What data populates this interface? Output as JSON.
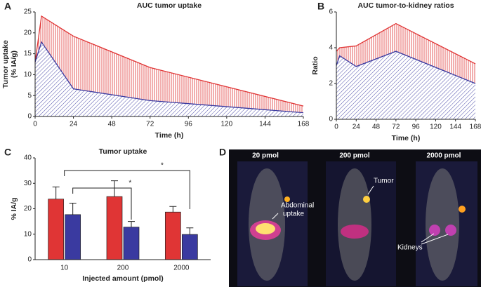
{
  "chart_data": [
    {
      "type": "area",
      "panel": "A",
      "title": "AUC tumor uptake",
      "ylabel": [
        "Tumor uptake",
        "(% IA/g)"
      ],
      "xlabel": "Time (h)",
      "x": [
        0,
        4,
        24,
        72,
        168
      ],
      "series": [
        {
          "color": "#e03535",
          "values": [
            13,
            24,
            19.2,
            11.7,
            2.5
          ]
        },
        {
          "color": "#3a3aa0",
          "values": [
            13,
            17.8,
            6.6,
            3.8,
            0.9
          ]
        }
      ],
      "xlim": [
        0,
        168
      ],
      "xticks": [
        0,
        24,
        48,
        72,
        96,
        120,
        144,
        168
      ],
      "ylim": [
        0,
        25
      ],
      "yticks": [
        0,
        5,
        10,
        15,
        20,
        25
      ]
    },
    {
      "type": "area",
      "panel": "B",
      "title": "AUC tumor-to-kidney ratios",
      "ylabel": [
        "Ratio"
      ],
      "xlabel": "Time (h)",
      "x": [
        0,
        4,
        24,
        72,
        168
      ],
      "series": [
        {
          "color": "#e03535",
          "values": [
            3.8,
            4.0,
            4.1,
            5.35,
            3.1
          ]
        },
        {
          "color": "#3a3aa0",
          "values": [
            3.0,
            3.55,
            2.95,
            3.8,
            2.0
          ]
        }
      ],
      "xlim": [
        0,
        168
      ],
      "xticks": [
        0,
        24,
        48,
        72,
        96,
        120,
        144,
        168
      ],
      "ylim": [
        0,
        6
      ],
      "yticks": [
        0,
        2,
        4,
        6
      ]
    },
    {
      "type": "bar",
      "panel": "C",
      "title": "Tumor uptake",
      "ylabel": [
        "% IA/g"
      ],
      "xlabel": "Injected amount (pmol)",
      "categories": [
        "10",
        "200",
        "2000"
      ],
      "series": [
        {
          "color": "#e03535",
          "values": [
            23.8,
            24.8,
            18.7
          ],
          "errors": [
            4.8,
            6.2,
            2.2
          ]
        },
        {
          "color": "#3a3aa0",
          "values": [
            17.7,
            12.8,
            9.9
          ],
          "errors": [
            4.5,
            2.2,
            2.6
          ]
        }
      ],
      "ylim": [
        0,
        40
      ],
      "yticks": [
        0,
        10,
        20,
        30,
        40
      ],
      "annotations": [
        "*",
        "*"
      ]
    }
  ],
  "panel_d": {
    "panel": "D",
    "doses": [
      "20 pmol",
      "200 pmol",
      "2000 pmol"
    ],
    "labels": [
      "Abdominal",
      "uptake",
      "Tumor",
      "Kidneys"
    ]
  }
}
